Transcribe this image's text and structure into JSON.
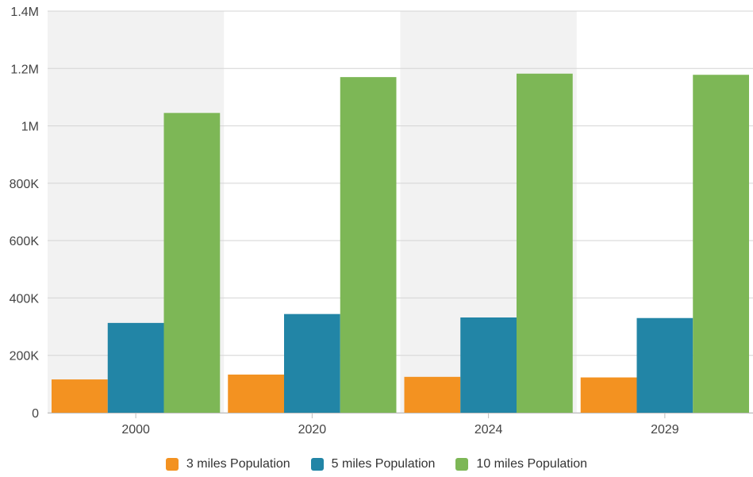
{
  "chart_data": {
    "type": "bar",
    "categories": [
      "2000",
      "2020",
      "2024",
      "2029"
    ],
    "series": [
      {
        "name": "3 miles Population",
        "color": "#f39221",
        "values": [
          116000,
          133000,
          125000,
          123000
        ]
      },
      {
        "name": "5 miles Population",
        "color": "#2285a6",
        "values": [
          313000,
          344000,
          332000,
          330000
        ]
      },
      {
        "name": "10 miles Population",
        "color": "#7db756",
        "values": [
          1045000,
          1170000,
          1182000,
          1178000
        ]
      }
    ],
    "y_ticks": [
      {
        "value": 0,
        "label": "0"
      },
      {
        "value": 200000,
        "label": "200K"
      },
      {
        "value": 400000,
        "label": "400K"
      },
      {
        "value": 600000,
        "label": "600K"
      },
      {
        "value": 800000,
        "label": "800K"
      },
      {
        "value": 1000000,
        "label": "1M"
      },
      {
        "value": 1200000,
        "label": "1.2M"
      },
      {
        "value": 1400000,
        "label": "1.4M"
      }
    ],
    "ylim": [
      0,
      1400000
    ],
    "grid": true,
    "band_color": "#f2f2f2",
    "legend_position": "bottom"
  }
}
